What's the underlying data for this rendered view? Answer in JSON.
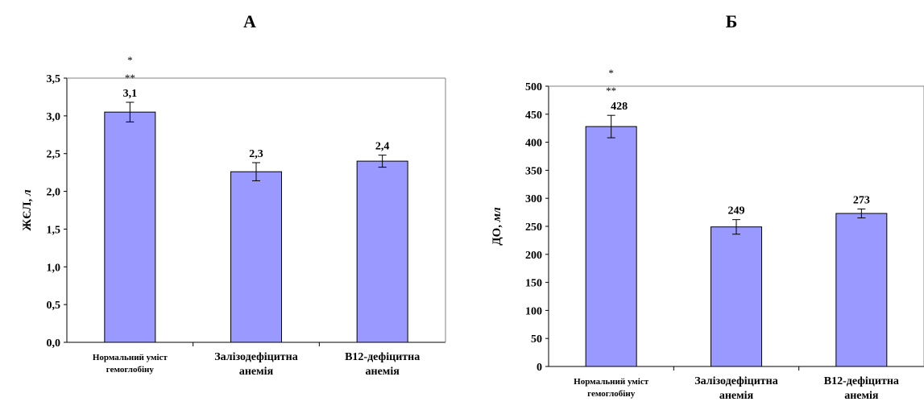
{
  "chart_data": [
    {
      "type": "bar",
      "title": "А",
      "ylabel": "ЖЄЛ,",
      "ylabel_unit": "л",
      "categories": [
        [
          "Нормальний уміст",
          "гемоглобіну"
        ],
        [
          "Залізодефіцитна",
          "анемія"
        ],
        [
          "В12-дефіцитна",
          "анемія"
        ]
      ],
      "values": [
        3.05,
        2.26,
        2.4
      ],
      "errors": [
        0.13,
        0.12,
        0.08
      ],
      "value_labels": [
        "3,1",
        "2,3",
        "2,4"
      ],
      "significance": [
        [
          "*",
          "**"
        ],
        [],
        []
      ],
      "ylim": [
        0,
        3.5
      ],
      "yticks": [
        "0,0",
        "0,5",
        "1,0",
        "1,5",
        "2,0",
        "2,5",
        "3,0",
        "3,5"
      ],
      "bar_color": "#9999ff",
      "grid": false
    },
    {
      "type": "bar",
      "title": "Б",
      "ylabel": "ДО,",
      "ylabel_unit": "мл",
      "categories": [
        [
          "Нормальний уміст",
          "гемоглобіну"
        ],
        [
          "Залізодефіцитна",
          "анемія"
        ],
        [
          "В12-дефіцитна",
          "анемія"
        ]
      ],
      "values": [
        428,
        249,
        273
      ],
      "errors": [
        20,
        13,
        8
      ],
      "value_labels": [
        "428",
        "249",
        "273"
      ],
      "significance": [
        [
          "*",
          "**"
        ],
        [],
        []
      ],
      "ylim": [
        0,
        500
      ],
      "yticks": [
        "0",
        "50",
        "100",
        "150",
        "200",
        "250",
        "300",
        "350",
        "400",
        "450",
        "500"
      ],
      "bar_color": "#9999ff",
      "grid": false
    }
  ]
}
